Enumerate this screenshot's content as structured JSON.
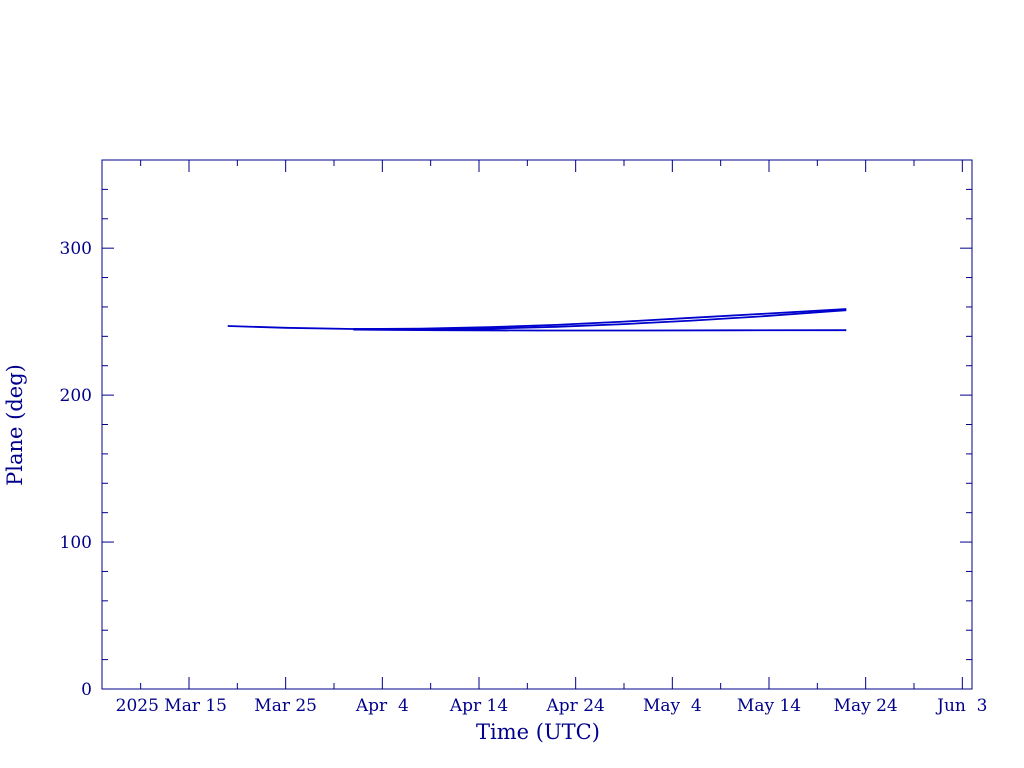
{
  "chart_data": {
    "type": "line",
    "title": "",
    "xlabel": "Time (UTC)",
    "ylabel": "Plane (deg)",
    "ylim": [
      0,
      360
    ],
    "xlim": [
      "2025-03-06",
      "2025-06-04"
    ],
    "y_ticks": [
      {
        "value": 0,
        "label": "0"
      },
      {
        "value": 100,
        "label": "100"
      },
      {
        "value": 200,
        "label": "200"
      },
      {
        "value": 300,
        "label": "300"
      }
    ],
    "x_ticks": [
      {
        "date": "2025-03-15",
        "label": "2025 Mar 15"
      },
      {
        "date": "2025-03-25",
        "label": "Mar 25"
      },
      {
        "date": "2025-04-04",
        "label": "Apr  4"
      },
      {
        "date": "2025-04-14",
        "label": "Apr 14"
      },
      {
        "date": "2025-04-24",
        "label": "Apr 24"
      },
      {
        "date": "2025-05-04",
        "label": "May  4"
      },
      {
        "date": "2025-05-14",
        "label": "May 14"
      },
      {
        "date": "2025-05-24",
        "label": "May 24"
      },
      {
        "date": "2025-06-03",
        "label": "Jun  3"
      }
    ],
    "grid": false,
    "line_color": "#0000cd",
    "axis_color": "#00008b",
    "series": [
      {
        "x": [
          "2025-03-19",
          "2025-03-25",
          "2025-04-01",
          "2025-04-08",
          "2025-04-15",
          "2025-04-22",
          "2025-04-29",
          "2025-05-06",
          "2025-05-13",
          "2025-05-20",
          "2025-05-22"
        ],
        "y": [
          247,
          245.8,
          245,
          244.7,
          245.2,
          246.5,
          248.3,
          250.7,
          253.5,
          256.8,
          257.8
        ]
      },
      {
        "x": [
          "2025-04-01",
          "2025-04-08",
          "2025-04-15",
          "2025-04-22",
          "2025-04-29",
          "2025-05-06",
          "2025-05-13",
          "2025-05-20",
          "2025-05-22"
        ],
        "y": [
          245,
          245.2,
          246.2,
          247.8,
          250,
          252.6,
          255.2,
          257.8,
          258.6
        ]
      },
      {
        "x": [
          "2025-04-01",
          "2025-04-10",
          "2025-04-20",
          "2025-05-01",
          "2025-05-10",
          "2025-05-22"
        ],
        "y": [
          244.6,
          244.2,
          244,
          244,
          244.1,
          244.2
        ]
      }
    ]
  }
}
